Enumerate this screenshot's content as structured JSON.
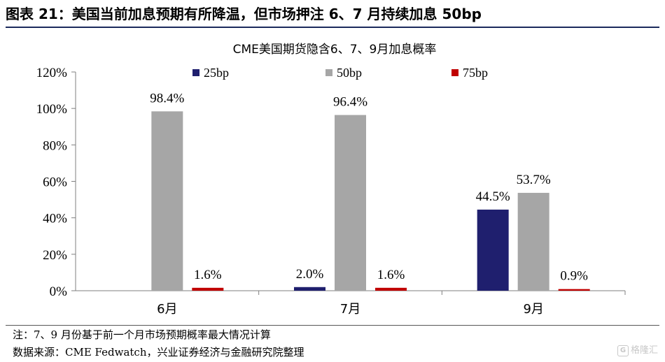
{
  "figure": {
    "title": "图表 21：美国当前加息预期有所降温，但市场押注 6、7 月持续加息 50bp",
    "note": "注：7、9 月份基于前一个月市场预期概率最大情况计算",
    "source": "数据来源：CME Fedwatch，兴业证券经济与金融研究院整理",
    "watermark": "格隆汇",
    "watermark_icon": "G"
  },
  "chart_data": {
    "type": "bar",
    "title": "CME美国期货隐含6、7、9月加息概率",
    "categories": [
      "6月",
      "7月",
      "9月"
    ],
    "series": [
      {
        "name": "25bp",
        "color": "#1f1f6e",
        "values": [
          null,
          2.0,
          44.5
        ],
        "labels": [
          "",
          "2.0%",
          "44.5%"
        ]
      },
      {
        "name": "50bp",
        "color": "#a6a6a6",
        "values": [
          98.4,
          96.4,
          53.7
        ],
        "labels": [
          "98.4%",
          "96.4%",
          "53.7%"
        ]
      },
      {
        "name": "75bp",
        "color": "#c00000",
        "values": [
          1.6,
          1.6,
          0.9
        ],
        "labels": [
          "1.6%",
          "1.6%",
          "0.9%"
        ]
      }
    ],
    "ylim": [
      0,
      120
    ],
    "yticks": [
      0,
      20,
      40,
      60,
      80,
      100,
      120
    ],
    "ytick_labels": [
      "0%",
      "20%",
      "40%",
      "60%",
      "80%",
      "100%",
      "120%"
    ],
    "legend_position": "top",
    "grid": false
  }
}
